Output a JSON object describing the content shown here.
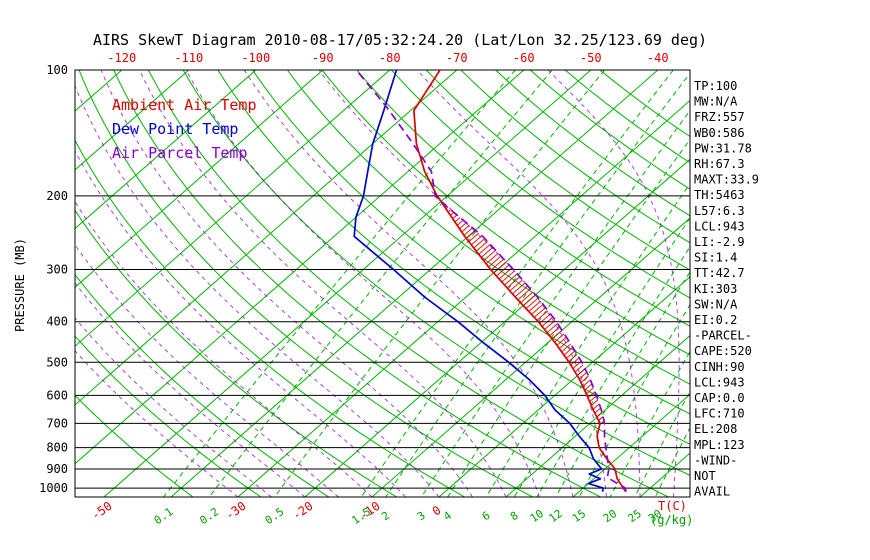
{
  "title": "AIRS SkewT Diagram 2010-08-17/05:32:24.20 (Lat/Lon 32.25/123.69 deg)",
  "colors": {
    "background": "#ffffff",
    "grid_green": "#00b400",
    "axis_black": "#000000",
    "temp_red": "#dd0000",
    "dewpoint_blue": "#0000cc",
    "parcel_purple": "#8800cc",
    "label_red": "#dd0000",
    "mixing_green": "#00a000"
  },
  "legend": [
    {
      "label": "Ambient Air Temp",
      "color": "#dd0000"
    },
    {
      "label": "Dew Point Temp",
      "color": "#0000cc"
    },
    {
      "label": "Air Parcel Temp",
      "color": "#8800cc"
    }
  ],
  "axes": {
    "pressure_axis_label": "PRESSURE (MB)",
    "pressure_ticks": [
      100,
      200,
      300,
      400,
      500,
      600,
      700,
      800,
      900,
      1000
    ],
    "top_temp_ticks": [
      -120,
      -110,
      -100,
      -90,
      -80,
      -70,
      -60,
      -50,
      -40
    ],
    "bottom_temp_ticks": [
      -50,
      -30,
      -20,
      -10,
      0
    ],
    "temp_unit_label": "T(C)",
    "mixing_unit_label": "(g/kg)",
    "mixing_ratio_ticks": [
      0.1,
      0.2,
      0.5,
      1.5,
      2,
      3,
      4,
      6,
      8,
      10,
      12,
      15,
      20,
      25,
      30
    ]
  },
  "stats_panel": [
    "TP:100",
    "MW:N/A",
    "FRZ:557",
    "WB0:586",
    "PW:31.78",
    "RH:67.3",
    "MAXT:33.9",
    "TH:5463",
    "L57:6.3",
    "LCL:943",
    "LI:-2.9",
    "SI:1.4",
    "TT:42.7",
    "KI:303",
    "SW:N/A",
    "EI:0.2",
    "-PARCEL-",
    "CAPE:520",
    "CINH:90",
    "LCL:943",
    "CAP:0.0",
    "LFC:710",
    "EL:208",
    "MPL:123",
    "-WIND-",
    "NOT",
    "AVAIL"
  ],
  "chart_data": {
    "type": "line",
    "variant": "skew-t-log-p",
    "title": "AIRS SkewT Diagram 2010-08-17/05:32:24.20 (Lat/Lon 32.25/123.69 deg)",
    "xlabel": "Temperature (C)",
    "ylabel": "Pressure (MB)",
    "pressure_range": [
      100,
      1050
    ],
    "x_top_tick_range": [
      -120,
      -40
    ],
    "x_bottom_tick_range": [
      -50,
      0
    ],
    "isotherm_step_c": 10,
    "dry_adiabat_step_c": 10,
    "moist_adiabat_step_c": 5,
    "mixing_ratio_lines_g_kg": [
      0.1,
      0.2,
      0.5,
      1.5,
      2,
      3,
      4,
      6,
      8,
      10,
      12,
      15,
      20,
      25,
      30
    ],
    "grid": "on",
    "legend_position": "upper-left-inside",
    "series": [
      {
        "name": "Ambient Air Temp",
        "color": "#dd0000",
        "style": "solid",
        "points_mb_c": [
          [
            1020,
            27
          ],
          [
            1000,
            26
          ],
          [
            950,
            23.5
          ],
          [
            900,
            21.5
          ],
          [
            850,
            18.5
          ],
          [
            800,
            15.5
          ],
          [
            750,
            13.2
          ],
          [
            700,
            11.5
          ],
          [
            650,
            8.2
          ],
          [
            600,
            4.8
          ],
          [
            550,
            1.0
          ],
          [
            500,
            -3.5
          ],
          [
            450,
            -8.8
          ],
          [
            400,
            -15.0
          ],
          [
            350,
            -22.5
          ],
          [
            300,
            -31.0
          ],
          [
            250,
            -40.5
          ],
          [
            200,
            -51.5
          ],
          [
            175,
            -57.5
          ],
          [
            150,
            -63.5
          ],
          [
            125,
            -69.5
          ],
          [
            100,
            -72.5
          ]
        ]
      },
      {
        "name": "Dew Point Temp",
        "color": "#0000cc",
        "style": "solid",
        "points_mb_c": [
          [
            1020,
            23.5
          ],
          [
            1000,
            23.0
          ],
          [
            975,
            20.0
          ],
          [
            950,
            21.0
          ],
          [
            925,
            18.5
          ],
          [
            900,
            19.5
          ],
          [
            850,
            16.5
          ],
          [
            800,
            14.0
          ],
          [
            750,
            10.5
          ],
          [
            700,
            7.0
          ],
          [
            650,
            2.5
          ],
          [
            600,
            -1.5
          ],
          [
            550,
            -6.5
          ],
          [
            500,
            -12.5
          ],
          [
            450,
            -19.5
          ],
          [
            400,
            -27.0
          ],
          [
            350,
            -36.0
          ],
          [
            300,
            -45.5
          ],
          [
            275,
            -51.0
          ],
          [
            250,
            -57.0
          ],
          [
            225,
            -60.0
          ],
          [
            200,
            -62.5
          ],
          [
            175,
            -66.0
          ],
          [
            150,
            -70.0
          ],
          [
            125,
            -74.0
          ],
          [
            100,
            -79.0
          ]
        ]
      },
      {
        "name": "Air Parcel Temp",
        "color": "#8800cc",
        "style": "dashed",
        "points_mb_c": [
          [
            1020,
            27
          ],
          [
            1000,
            26.3
          ],
          [
            943,
            21.8
          ],
          [
            900,
            20.6
          ],
          [
            850,
            18.6
          ],
          [
            800,
            16.5
          ],
          [
            750,
            14.3
          ],
          [
            700,
            12.2
          ],
          [
            650,
            9.4
          ],
          [
            600,
            6.2
          ],
          [
            550,
            2.6
          ],
          [
            500,
            -1.6
          ],
          [
            450,
            -6.6
          ],
          [
            400,
            -12.3
          ],
          [
            350,
            -19.2
          ],
          [
            300,
            -27.6
          ],
          [
            250,
            -37.8
          ],
          [
            208,
            -49.5
          ],
          [
            200,
            -51.8
          ],
          [
            175,
            -56.5
          ],
          [
            150,
            -64.0
          ],
          [
            123,
            -74.0
          ],
          [
            100,
            -85.0
          ]
        ]
      }
    ],
    "cape_hatch_region": {
      "from_pressure_mb": 710,
      "to_pressure_mb": 208,
      "hatch_color": "#dd0000"
    }
  }
}
